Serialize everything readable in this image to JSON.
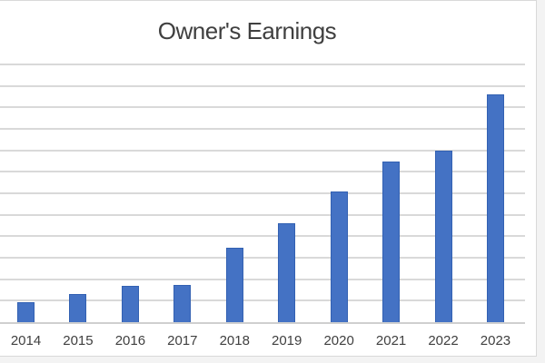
{
  "page": {
    "background_color": "#F3F3F3"
  },
  "chart": {
    "title": "Owner's Earnings",
    "background_color": "#FFFFFF",
    "border_color": "#D9D9D9",
    "title_color": "#404040",
    "label_color": "#404040",
    "gridline_color": "#D9D9D9",
    "axis_line_color": "#CFCFCF",
    "bar_fill_color": "#4472C4",
    "bar_border_color": "#3361B2"
  },
  "chart_data": {
    "type": "bar",
    "title": "Owner's Earnings",
    "categories": [
      "2014",
      "2015",
      "2016",
      "2017",
      "2018",
      "2019",
      "2020",
      "2021",
      "2022",
      "2023"
    ],
    "values": [
      0.92,
      1.3,
      1.7,
      1.75,
      3.45,
      4.6,
      6.1,
      7.5,
      8.0,
      10.6
    ],
    "xlabel": "",
    "ylabel": "",
    "ylim": [
      0,
      12
    ],
    "y_tick_labels": [],
    "x_tick_labels": [
      "2014",
      "2015",
      "2016",
      "2017",
      "2018",
      "2019",
      "2020",
      "2021",
      "2022",
      "2023"
    ],
    "gridlines": "horizontal only, every 1 unit (13 lines including axis)",
    "legend": "none",
    "note": "No y-axis tick labels visible; values estimated in gridline units from pixel heights"
  }
}
